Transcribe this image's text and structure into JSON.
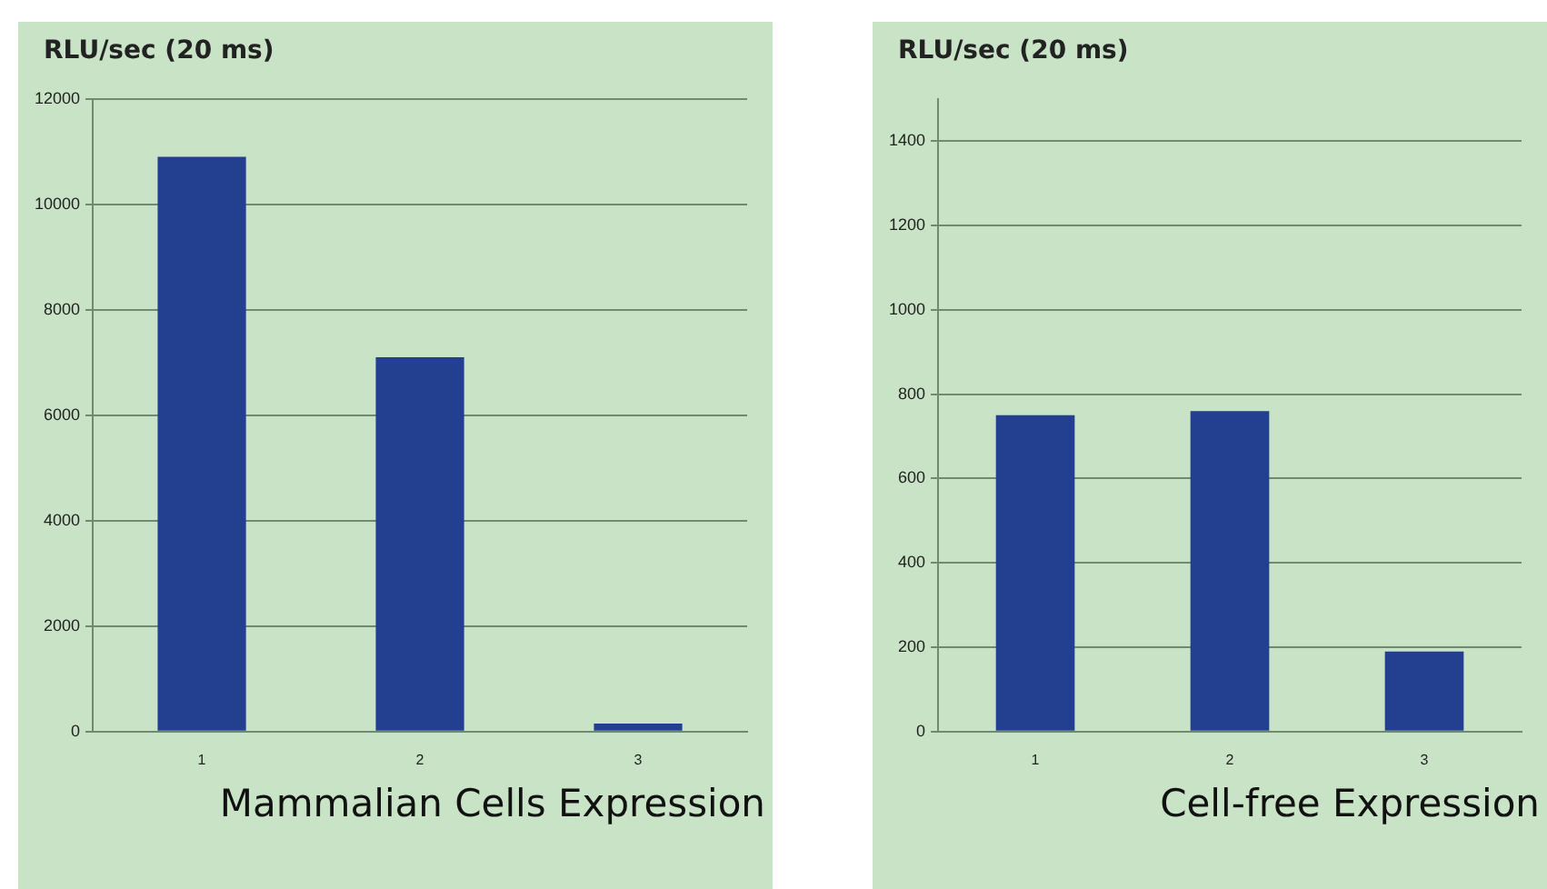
{
  "chart_data": [
    {
      "type": "bar",
      "ylabel": "RLU/sec (20 ms)",
      "xlabel": "Mammalian Cells Expression",
      "categories": [
        "1",
        "2",
        "3"
      ],
      "values": [
        10900,
        7100,
        150
      ],
      "color": "#22408f",
      "ylim": [
        0,
        12000
      ],
      "yticks": [
        0,
        2000,
        4000,
        6000,
        8000,
        10000,
        12000
      ],
      "grid": "y"
    },
    {
      "type": "bar",
      "ylabel": "RLU/sec (20 ms)",
      "xlabel": "Cell-free Expression",
      "categories": [
        "1",
        "2",
        "3"
      ],
      "values": [
        750,
        760,
        190
      ],
      "color": "#22408f",
      "ylim": [
        0,
        1500
      ],
      "yticks": [
        0,
        200,
        400,
        600,
        800,
        1000,
        1200,
        1400
      ],
      "grid": "y"
    }
  ]
}
